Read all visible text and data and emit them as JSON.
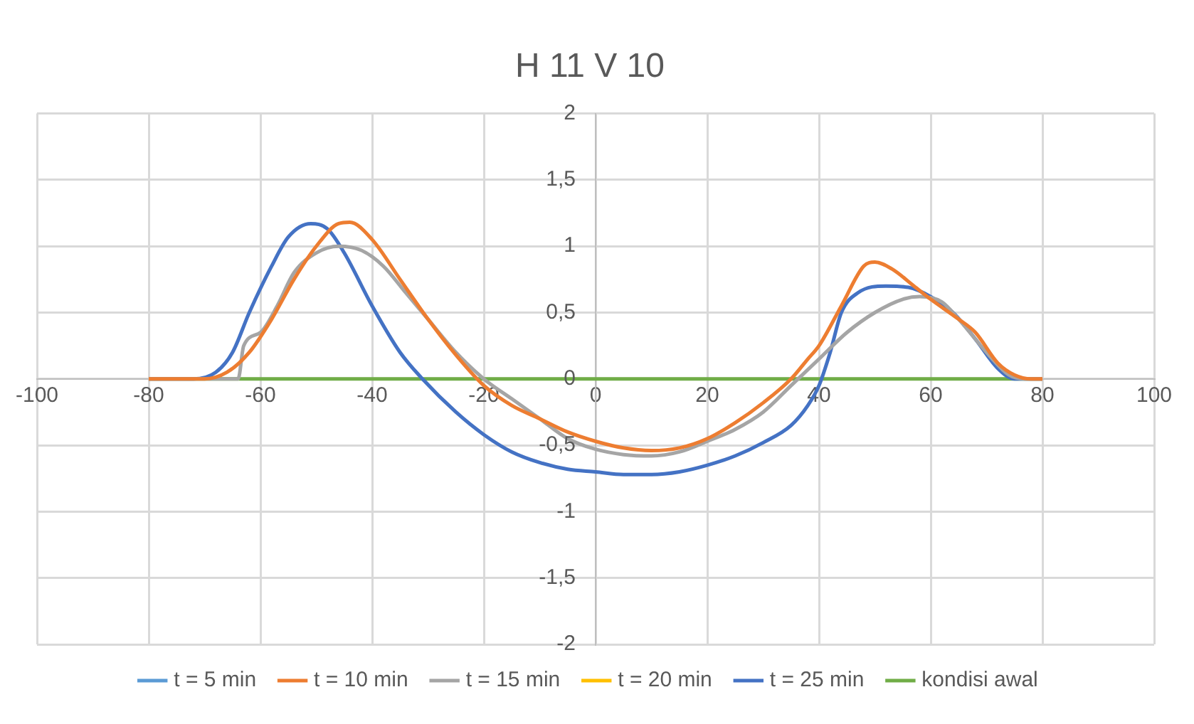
{
  "chart_data": {
    "type": "line",
    "title": "H 11 V 10",
    "xlim": [
      -100,
      100
    ],
    "xticks": [
      -100,
      -80,
      -60,
      -40,
      -20,
      0,
      20,
      40,
      60,
      80,
      100
    ],
    "ylim": [
      -2,
      2
    ],
    "yticks": [
      {
        "value": -2,
        "label": "-2"
      },
      {
        "value": -1.5,
        "label": "-1,5"
      },
      {
        "value": -1,
        "label": "-1"
      },
      {
        "value": -0.5,
        "label": "-0,5"
      },
      {
        "value": 0,
        "label": "0"
      },
      {
        "value": 0.5,
        "label": "0,5"
      },
      {
        "value": 1,
        "label": "1"
      },
      {
        "value": 1.5,
        "label": "1,5"
      },
      {
        "value": 2,
        "label": "2"
      }
    ],
    "grid": true,
    "legend": "bottom",
    "marker": "none",
    "line_style": "solid",
    "series": [
      {
        "name": "t = 5 min",
        "color": "#5b9bd5"
      },
      {
        "name": "t = 10 min",
        "color": "#ed7d31",
        "x": [
          -80,
          -70,
          -66,
          -62,
          -58,
          -54,
          -50,
          -46,
          -44,
          -40,
          -35,
          -30,
          -25,
          -20,
          -15,
          -10,
          -5,
          0,
          5,
          10,
          15,
          20,
          25,
          30,
          35,
          38,
          40,
          44,
          48,
          50,
          53,
          57,
          60,
          65,
          68,
          72,
          75,
          78,
          80
        ],
        "values": [
          0,
          0,
          0.05,
          0.2,
          0.45,
          0.75,
          1.0,
          1.17,
          1.18,
          1.05,
          0.75,
          0.45,
          0.18,
          -0.05,
          -0.2,
          -0.3,
          -0.4,
          -0.47,
          -0.52,
          -0.54,
          -0.52,
          -0.45,
          -0.33,
          -0.18,
          0.0,
          0.15,
          0.25,
          0.55,
          0.85,
          0.88,
          0.83,
          0.7,
          0.6,
          0.45,
          0.35,
          0.12,
          0.03,
          0,
          0
        ]
      },
      {
        "name": "t = 15 min",
        "color": "#a5a5a5",
        "x": [
          -80,
          -66,
          -64,
          -63,
          -60,
          -57,
          -54,
          -50,
          -46,
          -42,
          -38,
          -34,
          -30,
          -25,
          -20,
          -15,
          -10,
          -5,
          0,
          5,
          10,
          15,
          20,
          25,
          30,
          35,
          40,
          45,
          50,
          55,
          58,
          62,
          65,
          70,
          74,
          77,
          80
        ],
        "values": [
          0,
          0,
          0.0,
          0.25,
          0.35,
          0.55,
          0.8,
          0.95,
          1.0,
          0.97,
          0.85,
          0.65,
          0.45,
          0.2,
          0.0,
          -0.15,
          -0.3,
          -0.45,
          -0.53,
          -0.57,
          -0.58,
          -0.55,
          -0.47,
          -0.38,
          -0.25,
          -0.05,
          0.15,
          0.35,
          0.5,
          0.6,
          0.62,
          0.58,
          0.45,
          0.2,
          0.03,
          0,
          0
        ]
      },
      {
        "name": "t = 20 min",
        "color": "#ffc000"
      },
      {
        "name": "t = 25 min",
        "color": "#4472c4",
        "x": [
          -80,
          -72,
          -68,
          -65,
          -62,
          -58,
          -55,
          -51,
          -48,
          -45,
          -40,
          -35,
          -31,
          -25,
          -20,
          -15,
          -10,
          -5,
          0,
          5,
          10,
          15,
          20,
          25,
          30,
          35,
          38,
          40,
          42,
          44,
          47,
          52,
          56,
          60,
          64,
          68,
          72,
          75,
          80
        ],
        "values": [
          0,
          0,
          0.05,
          0.2,
          0.5,
          0.85,
          1.07,
          1.17,
          1.13,
          0.95,
          0.55,
          0.2,
          0,
          -0.25,
          -0.42,
          -0.55,
          -0.63,
          -0.68,
          -0.7,
          -0.72,
          -0.72,
          -0.7,
          -0.65,
          -0.58,
          -0.48,
          -0.35,
          -0.2,
          -0.05,
          0.2,
          0.5,
          0.65,
          0.7,
          0.69,
          0.62,
          0.5,
          0.3,
          0.08,
          0,
          0
        ]
      },
      {
        "name": "kondisi awal",
        "color": "#70ad47",
        "x": [
          -80,
          80
        ],
        "values": [
          0,
          0
        ]
      }
    ]
  }
}
